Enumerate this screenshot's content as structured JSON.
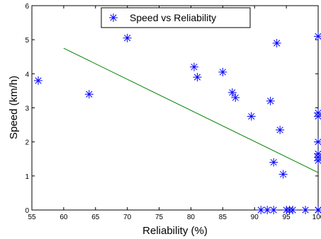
{
  "chart_data": {
    "type": "scatter",
    "xlabel": "Reliability (%)",
    "ylabel": "Speed (km/h)",
    "xlim": [
      55,
      100
    ],
    "ylim": [
      0,
      6
    ],
    "xticks": [
      "55",
      "60",
      "65",
      "70",
      "75",
      "80",
      "85",
      "90",
      "95",
      "100"
    ],
    "yticks": [
      "0",
      "1",
      "2",
      "3",
      "4",
      "5",
      "6"
    ],
    "grid": false,
    "legend_position": "top-center",
    "series": [
      {
        "name": "Speed vs Reliability",
        "marker": "asterisk",
        "color": "#0000ff",
        "x": [
          56,
          64,
          70,
          80.5,
          81,
          85,
          86.5,
          87,
          89.5,
          92.5,
          93,
          93.5,
          94,
          94.5,
          100,
          100,
          100,
          100,
          100,
          100,
          100,
          100,
          100,
          91,
          92,
          93,
          95,
          95.5,
          96,
          98,
          100
        ],
        "y": [
          3.8,
          3.4,
          5.05,
          4.2,
          3.9,
          4.05,
          3.45,
          3.3,
          2.75,
          3.2,
          1.4,
          4.9,
          2.35,
          1.05,
          5.1,
          2.85,
          2.75,
          2.0,
          1.65,
          1.55,
          1.45,
          0.0,
          0.0,
          0.0,
          0.0,
          0.0,
          0.0,
          0.0,
          0.0,
          0.0,
          0.0
        ]
      },
      {
        "type": "line",
        "color": "#008000",
        "x": [
          60,
          100
        ],
        "y": [
          4.75,
          1.1
        ]
      }
    ]
  }
}
